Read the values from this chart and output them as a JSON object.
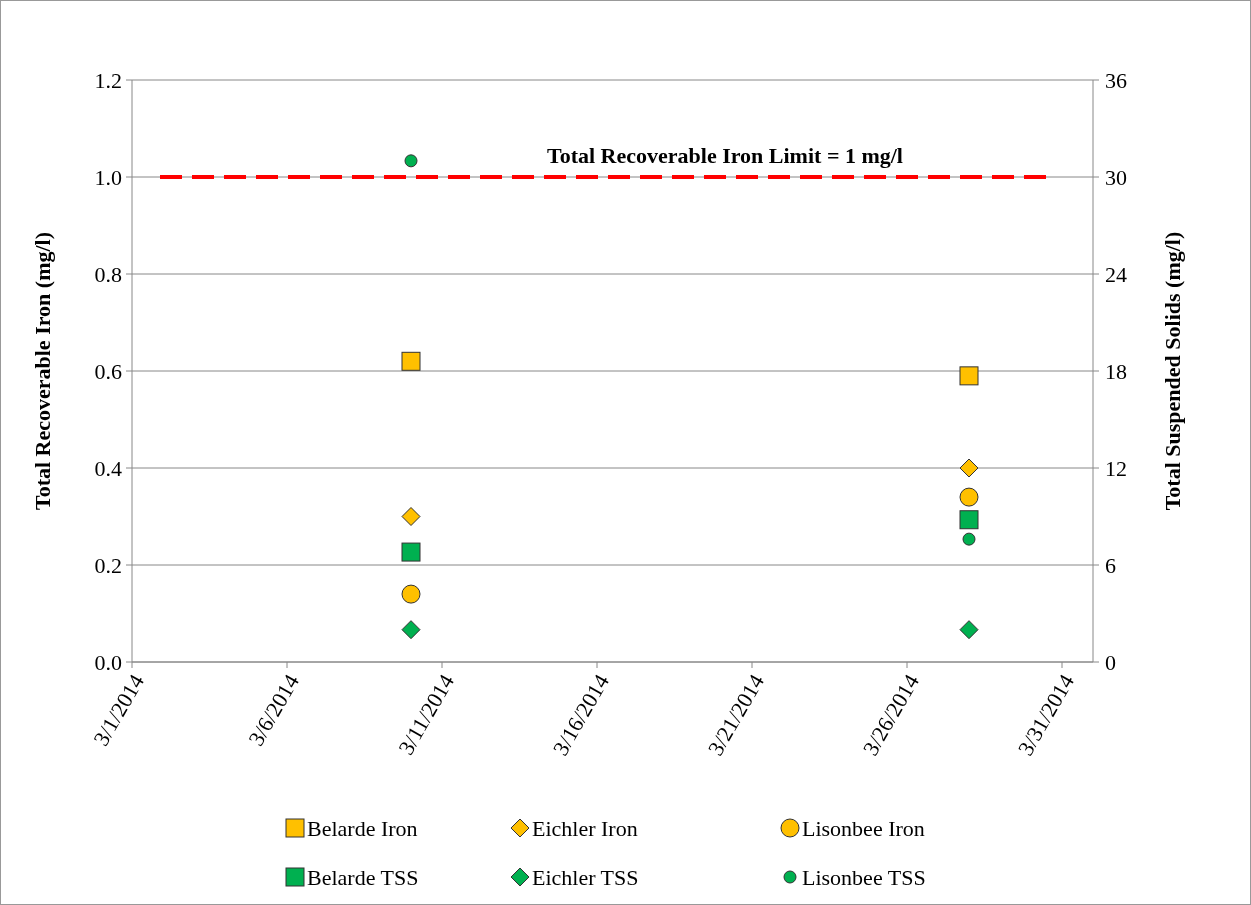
{
  "chart_data": {
    "type": "scatter",
    "ylabel": "Total Recoverable Iron (mg/l)",
    "y2label": "Total Suspended Solids (mg/l)",
    "x": [
      "2014-03-10",
      "2014-03-28"
    ],
    "series": [
      {
        "name": "Belarde Iron",
        "color": "#ffc000",
        "marker": "square",
        "values": [
          0.62,
          0.59
        ]
      },
      {
        "name": "Eichler Iron",
        "color": "#ffc000",
        "marker": "diamond",
        "values": [
          0.3,
          0.4
        ]
      },
      {
        "name": "Lisonbee Iron",
        "color": "#ffc000",
        "marker": "circle",
        "values": [
          0.14,
          0.34
        ]
      },
      {
        "name": "Belarde TSS",
        "color": "#00b050",
        "marker": "square",
        "axis": "y2",
        "values": [
          6.8,
          8.8
        ]
      },
      {
        "name": "Eichler TSS",
        "color": "#00b050",
        "marker": "diamond",
        "axis": "y2",
        "values": [
          2.0,
          2.0
        ]
      },
      {
        "name": "Lisonbee TSS",
        "color": "#00b050",
        "marker": "circle",
        "axis": "y2",
        "values": [
          31.0,
          7.6
        ]
      }
    ],
    "xlim": [
      "2014-03-01",
      "2014-04-01"
    ],
    "xticks": [
      {
        "value": "2014-03-01",
        "label": "3/1/2014"
      },
      {
        "value": "2014-03-06",
        "label": "3/6/2014"
      },
      {
        "value": "2014-03-11",
        "label": "3/11/2014"
      },
      {
        "value": "2014-03-16",
        "label": "3/16/2014"
      },
      {
        "value": "2014-03-21",
        "label": "3/21/2014"
      },
      {
        "value": "2014-03-26",
        "label": "3/26/2014"
      },
      {
        "value": "2014-03-31",
        "label": "3/31/2014"
      }
    ],
    "ylim": [
      0,
      1.2
    ],
    "yticks": [
      {
        "value": 0,
        "label": "0.0"
      },
      {
        "value": 0.2,
        "label": "0.2"
      },
      {
        "value": 0.4,
        "label": "0.4"
      },
      {
        "value": 0.6,
        "label": "0.6"
      },
      {
        "value": 0.8,
        "label": "0.8"
      },
      {
        "value": 1,
        "label": "1.0"
      },
      {
        "value": 1.2,
        "label": "1.2"
      }
    ],
    "y2lim": [
      0,
      36
    ],
    "y2ticks": [
      0,
      6,
      12,
      18,
      24,
      30,
      36
    ],
    "ref_lines": [
      {
        "axis": "y",
        "value": 1,
        "label": "Total Recoverable Iron Limit = 1 mg/l",
        "color": "#ff0000",
        "line_style": "dashed"
      }
    ],
    "grid": "y",
    "legend": "bottom"
  }
}
